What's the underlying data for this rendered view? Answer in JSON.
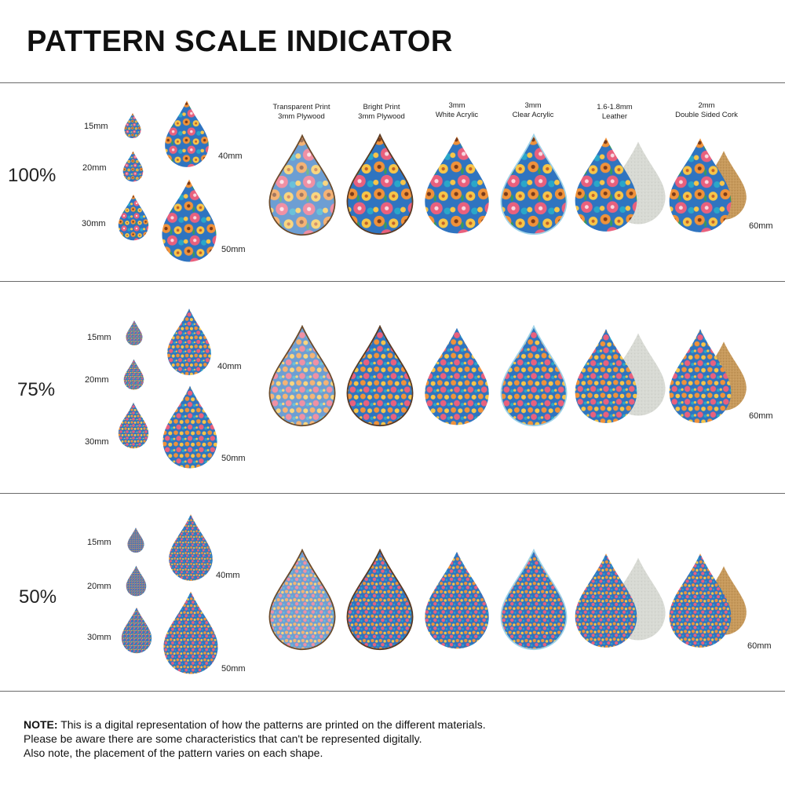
{
  "title": "PATTERN SCALE INDICATOR",
  "materials": [
    {
      "line1": "Transparent Print",
      "line2": "3mm Plywood"
    },
    {
      "line1": "Bright Print",
      "line2": "3mm Plywood"
    },
    {
      "line1": "3mm",
      "line2": "White Acrylic"
    },
    {
      "line1": "3mm",
      "line2": "Clear Acrylic"
    },
    {
      "line1": "1.6-1.8mm",
      "line2": "Leather"
    },
    {
      "line1": "2mm",
      "line2": "Double Sided Cork"
    }
  ],
  "sections": [
    {
      "scale": "100%",
      "sizes": {
        "s15": "15mm",
        "s20": "20mm",
        "s30": "30mm",
        "s40": "40mm",
        "s50": "50mm",
        "s60": "60mm"
      }
    },
    {
      "scale": "75%",
      "sizes": {
        "s15": "15mm",
        "s20": "20mm",
        "s30": "30mm",
        "s40": "40mm",
        "s50": "50mm",
        "s60": "60mm"
      }
    },
    {
      "scale": "50%",
      "sizes": {
        "s15": "15mm",
        "s20": "20mm",
        "s30": "30mm",
        "s40": "40mm",
        "s50": "50mm",
        "s60": "60mm"
      }
    }
  ],
  "note": {
    "label": "NOTE:",
    "line1": " This is a digital representation of how the patterns are printed on the different materials.",
    "line2": "Please be aware there are some characteristics that can't be represented digitally.",
    "line3": "Also note, the placement of the pattern varies on each shape."
  },
  "colors": {
    "blue": "#2f74c0",
    "orange": "#f0923a",
    "yellow": "#f7c548",
    "pink": "#e9607d",
    "teal": "#2aa7c9",
    "navy": "#1e3f7a",
    "leather": "#d8dad4",
    "cork": "#c79a5c"
  }
}
